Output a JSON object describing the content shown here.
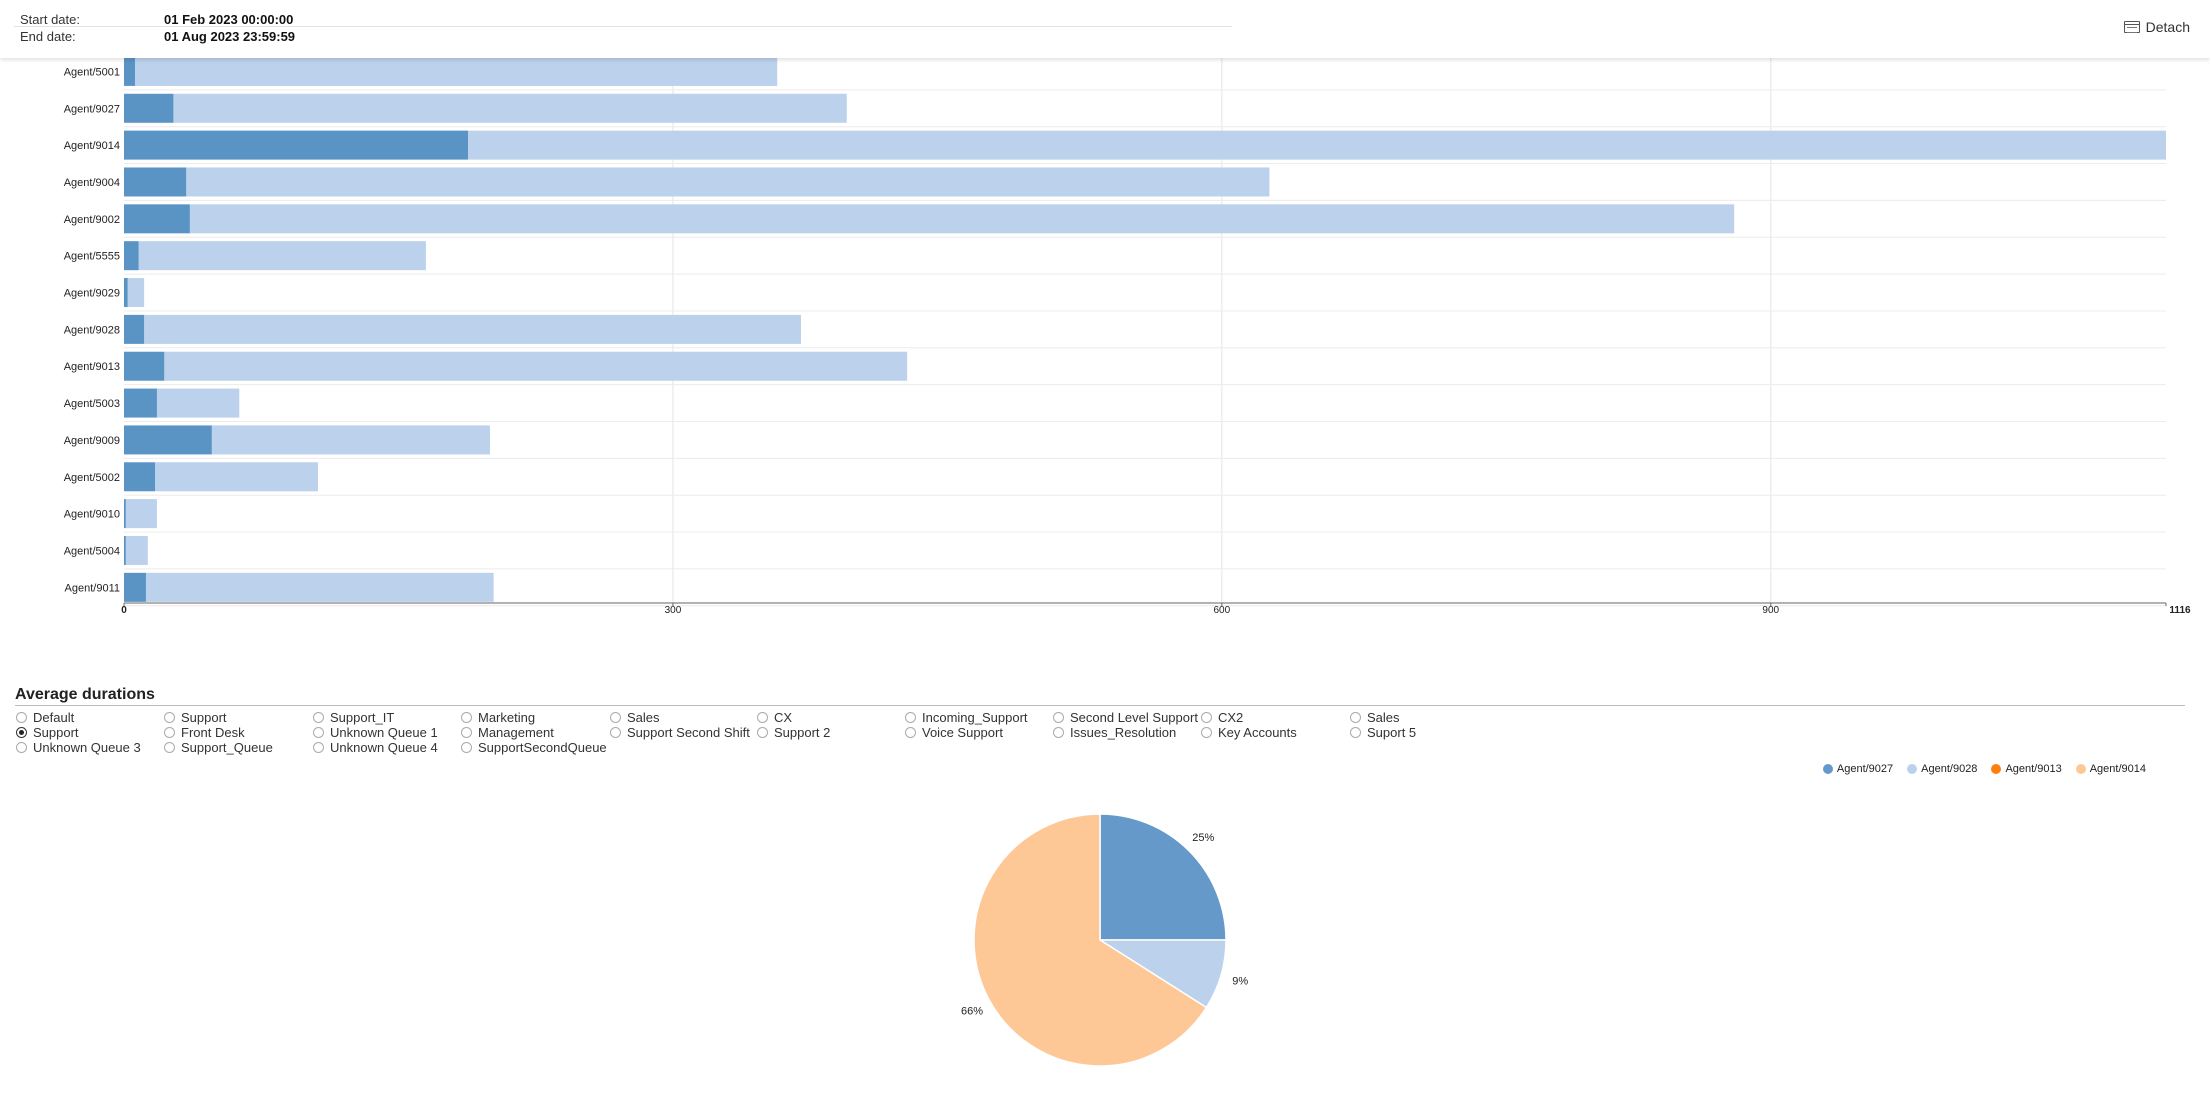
{
  "header": {
    "start_label": "Start date:",
    "start_value": "01 Feb 2023 00:00:00",
    "end_label": "End date:",
    "end_value": "01 Aug 2023 23:59:59",
    "detach_label": "Detach",
    "detach_icon": "window-icon"
  },
  "colors": {
    "bar_dark": "#5a94c4",
    "bar_light": "#bcd1ec",
    "pie_blue": "#6599c9",
    "pie_light_blue": "#bcd1ec",
    "pie_orange": "#fe7f0e",
    "pie_peach": "#fec896"
  },
  "chart_data": [
    {
      "type": "bar",
      "orientation": "horizontal",
      "stacked": true,
      "categories": [
        "Agent/5001",
        "Agent/9027",
        "Agent/9014",
        "Agent/9004",
        "Agent/9002",
        "Agent/5555",
        "Agent/9029",
        "Agent/9028",
        "Agent/9013",
        "Agent/5003",
        "Agent/9009",
        "Agent/5002",
        "Agent/9010",
        "Agent/5004",
        "Agent/9011"
      ],
      "series": [
        {
          "values": [
            6,
            27,
            188,
            34,
            36,
            8,
            2,
            11,
            22,
            18,
            48,
            17,
            1,
            1,
            12
          ]
        },
        {
          "values": [
            351,
            368,
            928,
            592,
            844,
            157,
            9,
            359,
            406,
            45,
            152,
            89,
            17,
            12,
            190
          ]
        }
      ],
      "xlim": [
        0,
        1116
      ],
      "xticks": [
        "0",
        "300",
        "600",
        "900",
        "1116"
      ],
      "grid": true
    },
    {
      "type": "pie",
      "title": "Average durations",
      "legend": [
        {
          "name": "Agent/9027"
        },
        {
          "name": "Agent/9028"
        },
        {
          "name": "Agent/9013"
        },
        {
          "name": "Agent/9014"
        }
      ],
      "legend_position": "top-right",
      "values": [
        25,
        9,
        0,
        66
      ],
      "labels": [
        "25%",
        "9%",
        "",
        "66%"
      ]
    }
  ],
  "queues": {
    "selected": "Support",
    "options": [
      [
        "Default",
        "Support",
        "Unknown Queue 3"
      ],
      [
        "Support",
        "Front Desk",
        "Support_Queue"
      ],
      [
        "Support_IT",
        "Unknown Queue 1",
        "Unknown Queue 4"
      ],
      [
        "Marketing",
        "Management",
        "SupportSecondQueue"
      ],
      [
        "Sales",
        "Support Second Shift"
      ],
      [
        "CX",
        "Support 2"
      ],
      [
        "Incoming_Support",
        "Voice Support"
      ],
      [
        "Second Level Support",
        "Issues_Resolution"
      ],
      [
        "CX2",
        "Key Accounts"
      ],
      [
        "Sales",
        "Suport 5"
      ]
    ]
  }
}
